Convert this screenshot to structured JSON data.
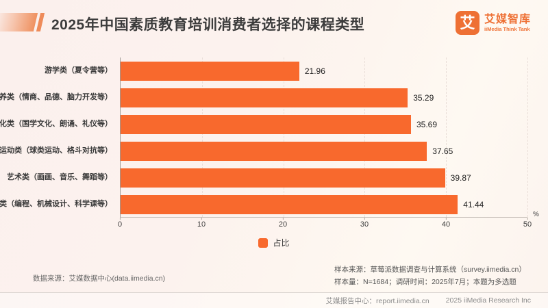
{
  "header": {
    "title": "2025年中国素质教育培训消费者选择的课程类型",
    "logo": {
      "mark": "艾",
      "name_cn": "艾媒智库",
      "name_en": "iiMedia Think Tank"
    }
  },
  "chart_data": {
    "type": "bar",
    "orientation": "horizontal",
    "title": "2025年中国素质教育培训消费者选择的课程类型",
    "categories": [
      "游学类（夏令营等）",
      "素养类（情商、品德、脑力开发等）",
      "文化类（国学文化、朗诵、礼仪等）",
      "体育运动类（球类运动、格斗对抗等）",
      "艺术类（画画、音乐、舞蹈等）",
      "科技类（编程、机械设计、科学课等）"
    ],
    "values": [
      21.96,
      35.29,
      35.69,
      37.65,
      39.87,
      41.44
    ],
    "series_name": "占比",
    "xlim": [
      0,
      50
    ],
    "x_ticks": [
      0,
      10,
      20,
      30,
      40,
      50
    ],
    "x_unit": "%",
    "bar_color": "#f8692d",
    "grid": "vertical-dashed",
    "legend_position": "bottom-center"
  },
  "legend": {
    "label": "占比"
  },
  "colors": {
    "brand_orange": "#ee7034",
    "bar_orange": "#f8692d"
  },
  "notes": {
    "data_source": "数据来源：艾媒数据中心(data.iimedia.cn)",
    "sample_source": "样本来源：草莓派数据调查与计算系统（survey.iimedia.cn）",
    "sample_info": "样本量：N=1684；调研时间：2025年7月；本题为多选题"
  },
  "footer": {
    "report_center": "艾媒报告中心：report.iimedia.cn",
    "copyright": "2025 iiMedia Research Inc"
  }
}
